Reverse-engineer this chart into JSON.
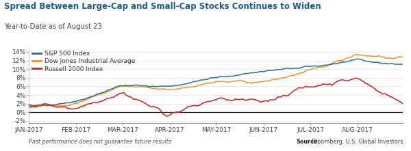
{
  "title": "Spread Between Large-Cap and Small-Cap Stocks Continues to Widen",
  "subtitle": "Year-to-Date as of August 23",
  "footer_left": "Past performance does not guarantee future results",
  "footer_right_bold": "Source:",
  "footer_right_normal": " Bloomberg, U.S. Global Investors",
  "title_color": "#1a5c8a",
  "bg_color": "#ffffff",
  "sp500_color": "#2e6e8e",
  "dji_color": "#e8952a",
  "russell_color": "#cc2222",
  "legend_labels": [
    "S&P 500 Index",
    "Dow Jones Industrial Average",
    "Russell 2000 Index"
  ],
  "ylim": [
    -2.5,
    15
  ],
  "yticks": [
    -2,
    0,
    2,
    4,
    6,
    8,
    10,
    12,
    14
  ],
  "xtick_labels": [
    "JAN-2017",
    "FEB-2017",
    "MAR-2017",
    "APR-2017",
    "MAY-2017",
    "JUN-2017",
    "JUL-2017",
    "AUG-2017"
  ],
  "num_points": 240
}
